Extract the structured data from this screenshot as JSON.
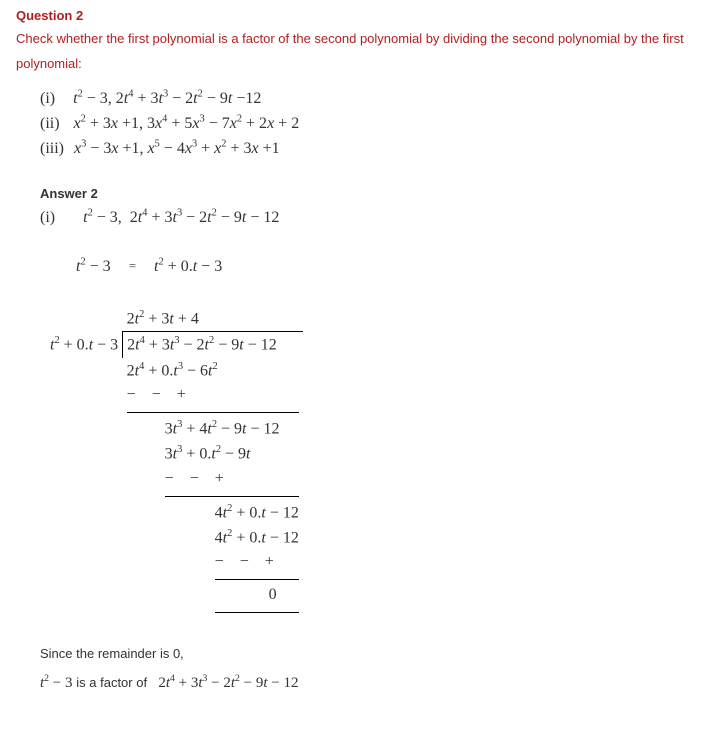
{
  "colors": {
    "accent": "#b02020",
    "text": "#333333",
    "background": "#ffffff"
  },
  "question": {
    "heading": "Question 2",
    "body": "Check whether the first polynomial is a factor of the second polynomial by dividing the second polynomial by the first polynomial:",
    "parts": {
      "i_label": "(i)",
      "i_expr_html": "<span class='ital'>t</span><sup>2</sup> − 3, 2<span class='ital'>t</span><sup>4</sup> + 3<span class='ital'>t</span><sup>3</sup> − 2<span class='ital'>t</span><sup>2</sup> − 9<span class='ital'>t</span> −12",
      "ii_label": "(ii)",
      "ii_expr_html": "<span class='ital'>x</span><sup>2</sup> + 3<span class='ital'>x</span> +1, 3<span class='ital'>x</span><sup>4</sup> + 5<span class='ital'>x</span><sup>3</sup> − 7<span class='ital'>x</span><sup>2</sup> + 2<span class='ital'>x</span> + 2",
      "iii_label": "(iii)",
      "iii_expr_html": "<span class='ital'>x</span><sup>3</sup> − 3<span class='ital'>x</span> +1, <span class='ital'>x</span><sup>5</sup> − 4<span class='ital'>x</span><sup>3</sup> + <span class='ital'>x</span><sup>2</sup> + 3<span class='ital'>x</span> +1"
    }
  },
  "answer": {
    "heading": "Answer 2",
    "part_label": "(i)",
    "part_expr_html": "<span class='ital'>t</span><sup>2</sup> − 3,&nbsp; 2<span class='ital'>t</span><sup>4</sup> + 3<span class='ital'>t</span><sup>3</sup> − 2<span class='ital'>t</span><sup>2</sup> − 9<span class='ital'>t</span> − 12",
    "rewrite_lhs_html": "<span class='ital'>t</span><sup>2</sup> − 3",
    "rewrite_eq": "=",
    "rewrite_rhs_html": "<span class='ital'>t</span><sup>2</sup> + 0.<span class='ital'>t</span> − 3"
  },
  "division": {
    "quotient_html": "2<span class='ital'>t</span><sup>2</sup> + 3<span class='ital'>t</span> + 4",
    "divisor_html": "<span class='ital'>t</span><sup>2</sup> + 0.<span class='ital'>t</span> − 3",
    "dividend_html": "2<span class='ital'>t</span><sup>4</sup> + 3<span class='ital'>t</span><sup>3</sup> − 2<span class='ital'>t</span><sup>2</sup> − 9<span class='ital'>t</span> − 12",
    "step1_sub_html": "2<span class='ital'>t</span><sup>4</sup> + 0.<span class='ital'>t</span><sup>3</sup> − 6<span class='ital'>t</span><sup>2</sup>",
    "signs1": "−   −   +",
    "step2_rem_html": "3<span class='ital'>t</span><sup>3</sup> + 4<span class='ital'>t</span><sup>2</sup> − 9<span class='ital'>t</span> − 12",
    "step2_sub_html": "3<span class='ital'>t</span><sup>3</sup> + 0.<span class='ital'>t</span><sup>2</sup> − 9<span class='ital'>t</span>",
    "signs2": "−   −    +",
    "step3_rem_html": "4<span class='ital'>t</span><sup>2</sup> + 0.<span class='ital'>t</span> − 12",
    "step3_sub_html": "4<span class='ital'>t</span><sup>2</sup> + 0.<span class='ital'>t</span> − 12",
    "signs3": "−    −   +",
    "final_remainder": "0"
  },
  "conclusion": {
    "line1": "Since the remainder is 0,",
    "factor_html": "<span class='ital'>t</span><sup>2</sup> − 3",
    "middle_text": "is a factor of",
    "poly_html": "2<span class='ital'>t</span><sup>4</sup> + 3<span class='ital'>t</span><sup>3</sup> − 2<span class='ital'>t</span><sup>2</sup> − 9<span class='ital'>t</span> − 12"
  }
}
